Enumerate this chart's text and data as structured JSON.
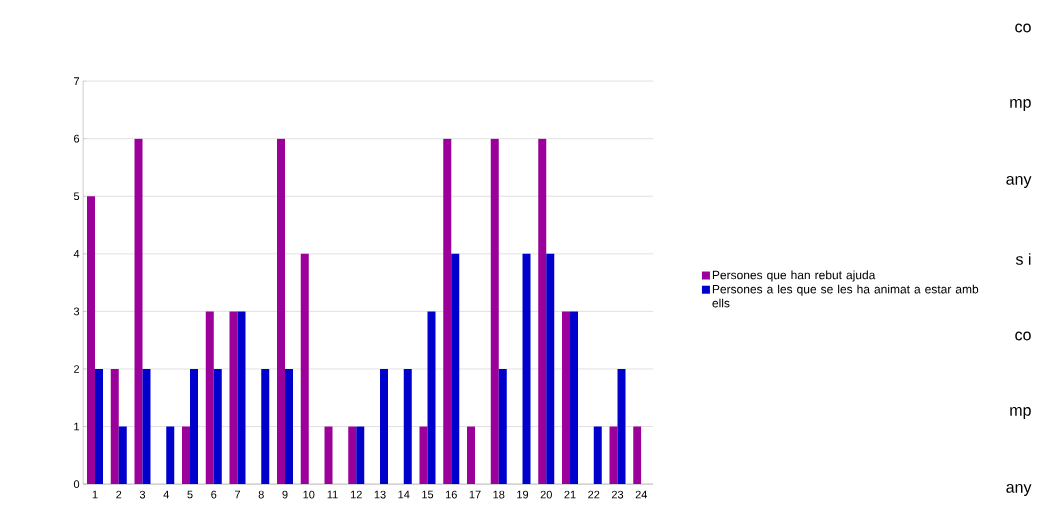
{
  "chart_data": {
    "type": "bar",
    "categories": [
      "1",
      "2",
      "3",
      "4",
      "5",
      "6",
      "7",
      "8",
      "9",
      "10",
      "11",
      "12",
      "13",
      "14",
      "15",
      "16",
      "17",
      "18",
      "19",
      "20",
      "21",
      "22",
      "23",
      "24"
    ],
    "series": [
      {
        "name": "Persones que han rebut ajuda",
        "color": "#9b009b",
        "values": [
          5,
          2,
          6,
          0,
          1,
          3,
          3,
          0,
          6,
          4,
          1,
          1,
          0,
          0,
          1,
          6,
          1,
          6,
          0,
          6,
          3,
          0,
          1,
          1
        ]
      },
      {
        "name": "Persones a les que se les ha animat a estar amb ells",
        "color": "#0000cc",
        "values": [
          2,
          1,
          2,
          1,
          2,
          2,
          3,
          2,
          2,
          0,
          0,
          1,
          2,
          2,
          3,
          4,
          0,
          2,
          4,
          4,
          3,
          1,
          2,
          0
        ]
      }
    ],
    "ylim": [
      0,
      7
    ],
    "yticks": [
      0,
      1,
      2,
      3,
      4,
      5,
      6,
      7
    ],
    "grid": "y",
    "legend": "right",
    "annotations": [
      "co",
      "mp",
      "any",
      "s i",
      "co",
      "mp",
      "any"
    ]
  }
}
